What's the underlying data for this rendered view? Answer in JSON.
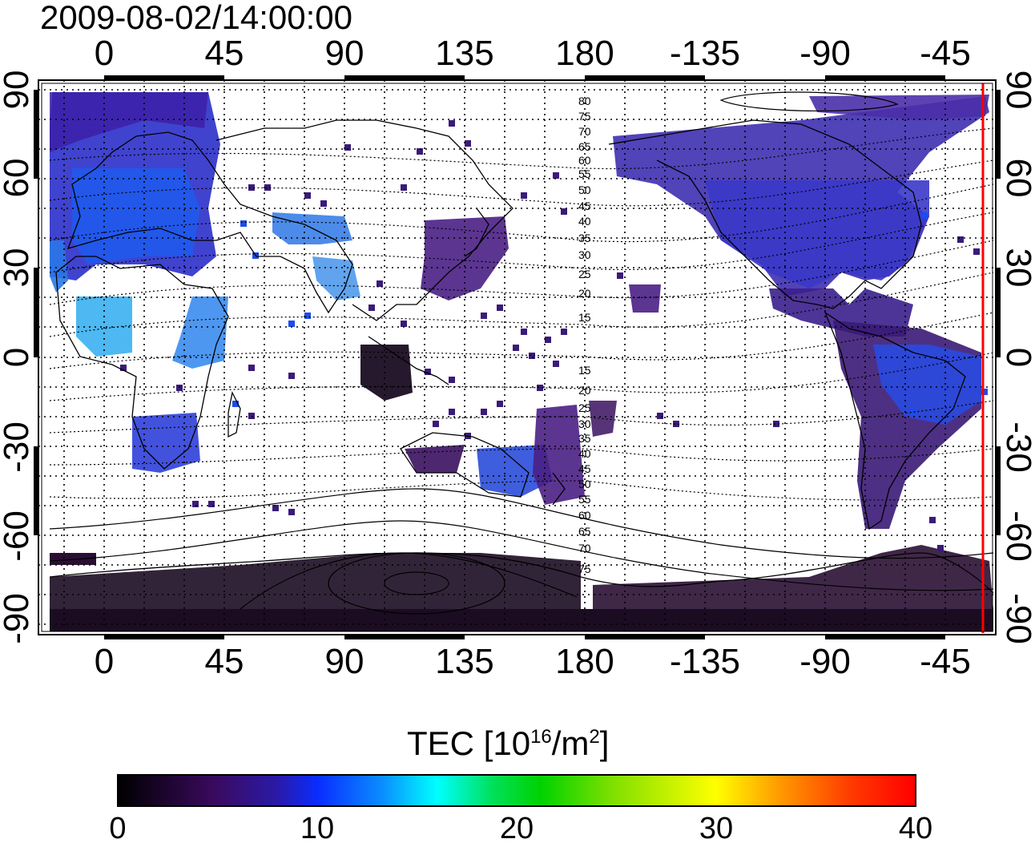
{
  "title": "2009-08-02/14:00:00",
  "longitude_ticks": [
    "0",
    "45",
    "90",
    "135",
    "180",
    "-135",
    "-90",
    "-45"
  ],
  "latitude_ticks": [
    "90",
    "60",
    "30",
    "0",
    "-30",
    "-60",
    "-90"
  ],
  "contour_labels_north": [
    "80",
    "75",
    "70",
    "65",
    "60",
    "55",
    "50",
    "45",
    "40",
    "35",
    "30",
    "25",
    "20",
    "15"
  ],
  "contour_labels_south": [
    "15",
    "20",
    "25",
    "30",
    "35",
    "40",
    "45",
    "50",
    "55",
    "60",
    "65",
    "70",
    "75"
  ],
  "colorbar": {
    "title_prefix": "TEC  [10",
    "title_exp1": "16",
    "title_mid": "/m",
    "title_exp2": "2",
    "title_suffix": "]",
    "tick_labels": [
      "0",
      "10",
      "20",
      "30",
      "40"
    ],
    "range": [
      0,
      40
    ],
    "colors": [
      "#000000",
      "#3a0a5e",
      "#0a2cff",
      "#00ffff",
      "#00d200",
      "#ffff00",
      "#ff0000"
    ]
  },
  "marker_line_color": "#ff0000"
}
